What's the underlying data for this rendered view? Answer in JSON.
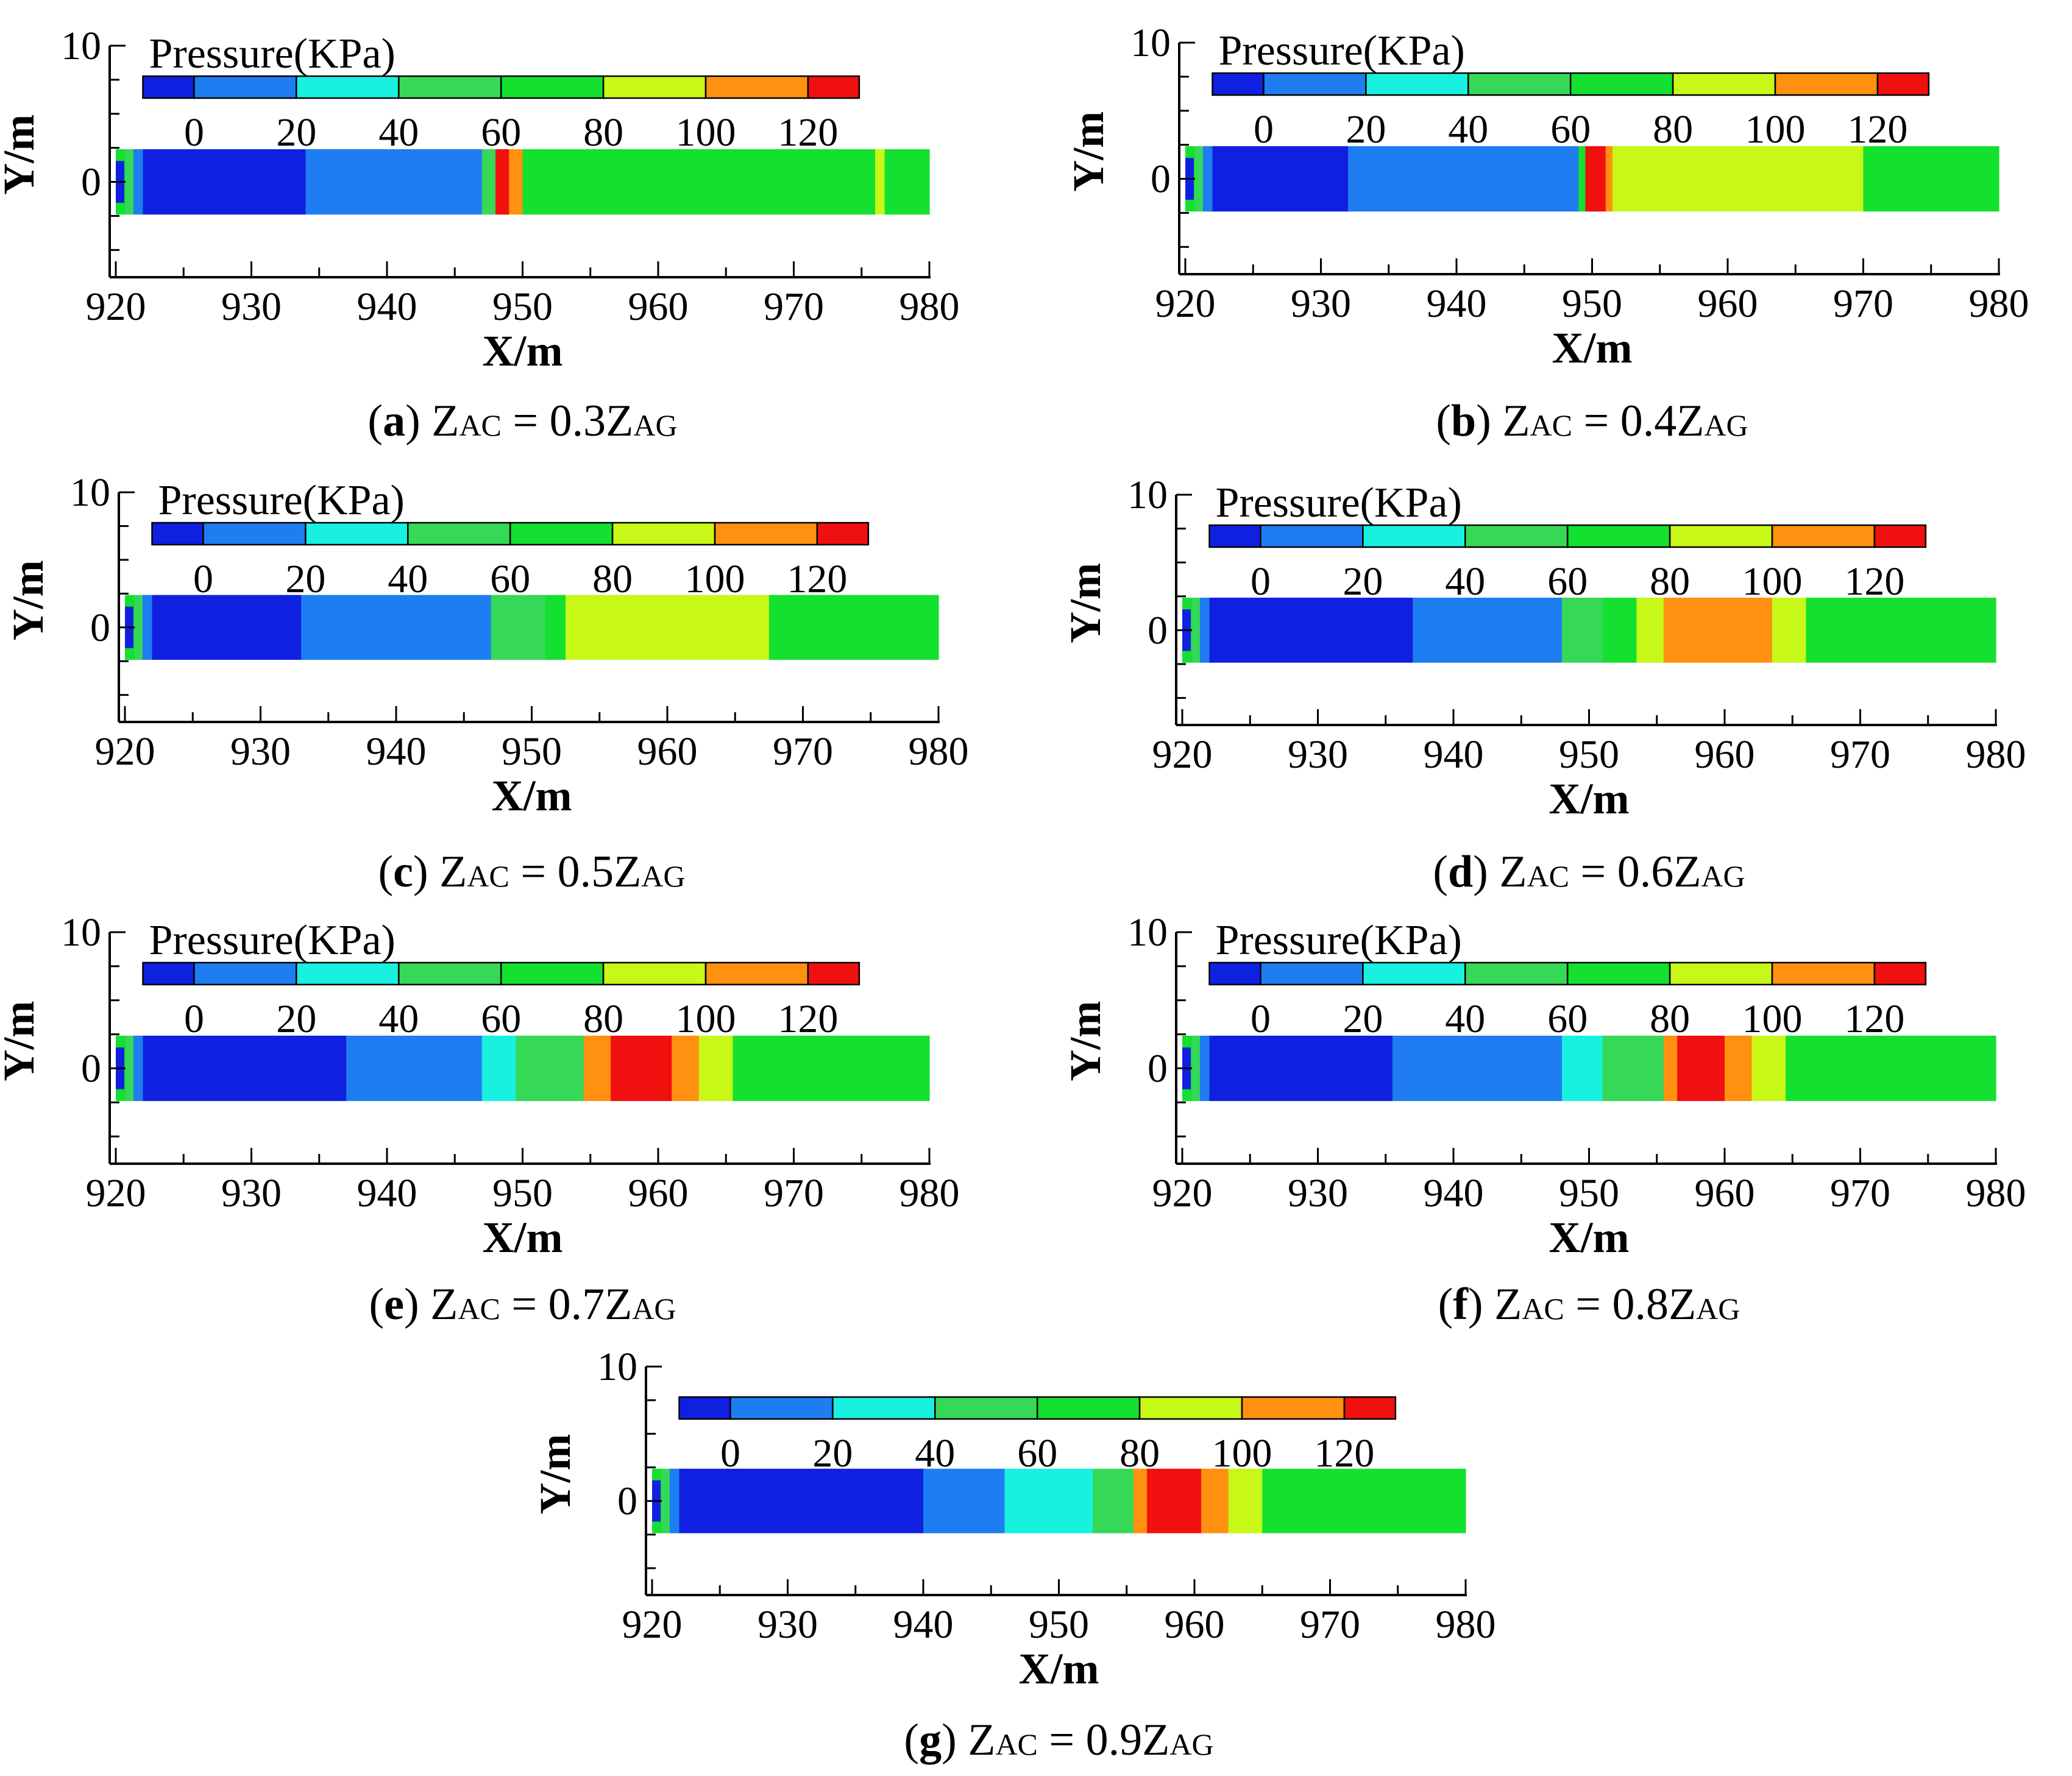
{
  "colors": {
    "palette": [
      "#1020e0",
      "#1e7df0",
      "#18f0e0",
      "#36d858",
      "#14e030",
      "#c8f818",
      "#ff9010",
      "#f01010"
    ],
    "axis": "#000000"
  },
  "colorbar": {
    "title": "Pressure(KPa)",
    "tick_labels": [
      "0",
      "20",
      "40",
      "60",
      "80",
      "100",
      "120"
    ]
  },
  "chart_data": [
    {
      "id": "a",
      "type": "heatmap",
      "xlabel": "X/m",
      "ylabel": "Y/m",
      "xlim": [
        920,
        980
      ],
      "ylim": [
        -7,
        10
      ],
      "x_ticks": [
        "920",
        "930",
        "940",
        "950",
        "960",
        "970",
        "980"
      ],
      "y_ticks": [
        "10",
        "0"
      ],
      "colorbar_title": "Pressure(KPa)",
      "caption": {
        "letter": "a",
        "lhs": "Z",
        "lhs_sub": "AC",
        "mid": " = 0.3Z",
        "rhs_sub": "AG"
      },
      "bands": [
        [
          920,
          920.7,
          4
        ],
        [
          920.7,
          921.3,
          3
        ],
        [
          921.3,
          922,
          1
        ],
        [
          922,
          934,
          0
        ],
        [
          934,
          947,
          1
        ],
        [
          947,
          948,
          3
        ],
        [
          948,
          949,
          7
        ],
        [
          949,
          950,
          6
        ],
        [
          950,
          951.5,
          4
        ],
        [
          951.5,
          976,
          4
        ],
        [
          976,
          976.7,
          5
        ],
        [
          976.7,
          980,
          4
        ]
      ]
    },
    {
      "id": "b",
      "type": "heatmap",
      "xlabel": "X/m",
      "ylabel": "Y/m",
      "xlim": [
        920,
        980
      ],
      "ylim": [
        -7,
        10
      ],
      "x_ticks": [
        "920",
        "930",
        "940",
        "950",
        "960",
        "970",
        "980"
      ],
      "y_ticks": [
        "10",
        "0"
      ],
      "colorbar_title": "Pressure(KPa)",
      "caption": {
        "letter": "b",
        "lhs": "Z",
        "lhs_sub": "AC",
        "mid": " = 0.4Z",
        "rhs_sub": "AG"
      },
      "bands": [
        [
          920,
          920.7,
          4
        ],
        [
          920.7,
          921.3,
          3
        ],
        [
          921.3,
          922,
          1
        ],
        [
          922,
          932,
          0
        ],
        [
          932,
          949,
          1
        ],
        [
          949,
          949.5,
          4
        ],
        [
          949.5,
          951,
          7
        ],
        [
          951,
          951.5,
          6
        ],
        [
          951.5,
          970,
          5
        ],
        [
          970,
          980,
          4
        ]
      ]
    },
    {
      "id": "c",
      "type": "heatmap",
      "xlabel": "X/m",
      "ylabel": "Y/m",
      "xlim": [
        920,
        980
      ],
      "ylim": [
        -7,
        10
      ],
      "x_ticks": [
        "920",
        "930",
        "940",
        "950",
        "960",
        "970",
        "980"
      ],
      "y_ticks": [
        "10",
        "0"
      ],
      "colorbar_title": "Pressure(KPa)",
      "caption": {
        "letter": "c",
        "lhs": "Z",
        "lhs_sub": "AC",
        "mid": " = 0.5Z",
        "rhs_sub": "AG"
      },
      "bands": [
        [
          920,
          920.7,
          4
        ],
        [
          920.7,
          921.3,
          3
        ],
        [
          921.3,
          922,
          1
        ],
        [
          922,
          933,
          0
        ],
        [
          933,
          947,
          1
        ],
        [
          947,
          951,
          3
        ],
        [
          951,
          952.5,
          4
        ],
        [
          952.5,
          967.5,
          5
        ],
        [
          967.5,
          980,
          4
        ]
      ]
    },
    {
      "id": "d",
      "type": "heatmap",
      "xlabel": "X/m",
      "ylabel": "Y/m",
      "xlim": [
        920,
        980
      ],
      "ylim": [
        -7,
        10
      ],
      "x_ticks": [
        "920",
        "930",
        "940",
        "950",
        "960",
        "970",
        "980"
      ],
      "y_ticks": [
        "10",
        "0"
      ],
      "colorbar_title": "Pressure(KPa)",
      "caption": {
        "letter": "d",
        "lhs": "Z",
        "lhs_sub": "AC",
        "mid": " = 0.6Z",
        "rhs_sub": "AG"
      },
      "bands": [
        [
          920,
          920.7,
          4
        ],
        [
          920.7,
          921.3,
          3
        ],
        [
          921.3,
          922,
          1
        ],
        [
          922,
          937,
          0
        ],
        [
          937,
          948,
          1
        ],
        [
          948,
          951,
          3
        ],
        [
          951,
          953.5,
          4
        ],
        [
          953.5,
          955.5,
          5
        ],
        [
          955.5,
          963.5,
          6
        ],
        [
          963.5,
          966,
          5
        ],
        [
          966,
          980,
          4
        ]
      ]
    },
    {
      "id": "e",
      "type": "heatmap",
      "xlabel": "X/m",
      "ylabel": "Y/m",
      "xlim": [
        920,
        980
      ],
      "ylim": [
        -7,
        10
      ],
      "x_ticks": [
        "920",
        "930",
        "940",
        "950",
        "960",
        "970",
        "980"
      ],
      "y_ticks": [
        "10",
        "0"
      ],
      "colorbar_title": "Pressure(KPa)",
      "caption": {
        "letter": "e",
        "lhs": "Z",
        "lhs_sub": "AC",
        "mid": " = 0.7Z",
        "rhs_sub": "AG"
      },
      "bands": [
        [
          920,
          920.7,
          4
        ],
        [
          920.7,
          921.3,
          3
        ],
        [
          921.3,
          922,
          1
        ],
        [
          922,
          937,
          0
        ],
        [
          937,
          947,
          1
        ],
        [
          947,
          949.5,
          2
        ],
        [
          949.5,
          954.5,
          3
        ],
        [
          954.5,
          956.5,
          6
        ],
        [
          956.5,
          961,
          7
        ],
        [
          961,
          963,
          6
        ],
        [
          963,
          965.5,
          5
        ],
        [
          965.5,
          980,
          4
        ]
      ]
    },
    {
      "id": "f",
      "type": "heatmap",
      "xlabel": "X/m",
      "ylabel": "Y/m",
      "xlim": [
        920,
        980
      ],
      "ylim": [
        -7,
        10
      ],
      "x_ticks": [
        "920",
        "930",
        "940",
        "950",
        "960",
        "970",
        "980"
      ],
      "y_ticks": [
        "10",
        "0"
      ],
      "colorbar_title": "Pressure(KPa)",
      "caption": {
        "letter": "f",
        "lhs": "Z",
        "lhs_sub": "AC",
        "mid": " = 0.8Z",
        "rhs_sub": "AG"
      },
      "bands": [
        [
          920,
          920.7,
          4
        ],
        [
          920.7,
          921.3,
          3
        ],
        [
          921.3,
          922,
          1
        ],
        [
          922,
          935.5,
          0
        ],
        [
          935.5,
          948,
          1
        ],
        [
          948,
          951,
          2
        ],
        [
          951,
          955.5,
          3
        ],
        [
          955.5,
          956.5,
          6
        ],
        [
          956.5,
          960,
          7
        ],
        [
          960,
          962,
          6
        ],
        [
          962,
          964.5,
          5
        ],
        [
          964.5,
          980,
          4
        ]
      ]
    },
    {
      "id": "g",
      "type": "heatmap",
      "xlabel": "X/m",
      "ylabel": "Y/m",
      "xlim": [
        920,
        980
      ],
      "ylim": [
        -7,
        10
      ],
      "x_ticks": [
        "920",
        "930",
        "940",
        "950",
        "960",
        "970",
        "980"
      ],
      "y_ticks": [
        "10",
        "0"
      ],
      "colorbar_title": "",
      "caption": {
        "letter": "g",
        "lhs": "Z",
        "lhs_sub": "AC",
        "mid": " = 0.9Z",
        "rhs_sub": "AG"
      },
      "bands": [
        [
          920,
          920.7,
          4
        ],
        [
          920.7,
          921.3,
          3
        ],
        [
          921.3,
          922,
          1
        ],
        [
          922,
          940,
          0
        ],
        [
          940,
          946,
          1
        ],
        [
          946,
          952.5,
          2
        ],
        [
          952.5,
          955.5,
          3
        ],
        [
          955.5,
          956.5,
          6
        ],
        [
          956.5,
          960.5,
          7
        ],
        [
          960.5,
          962.5,
          6
        ],
        [
          962.5,
          965,
          5
        ],
        [
          965,
          980,
          4
        ]
      ]
    }
  ]
}
